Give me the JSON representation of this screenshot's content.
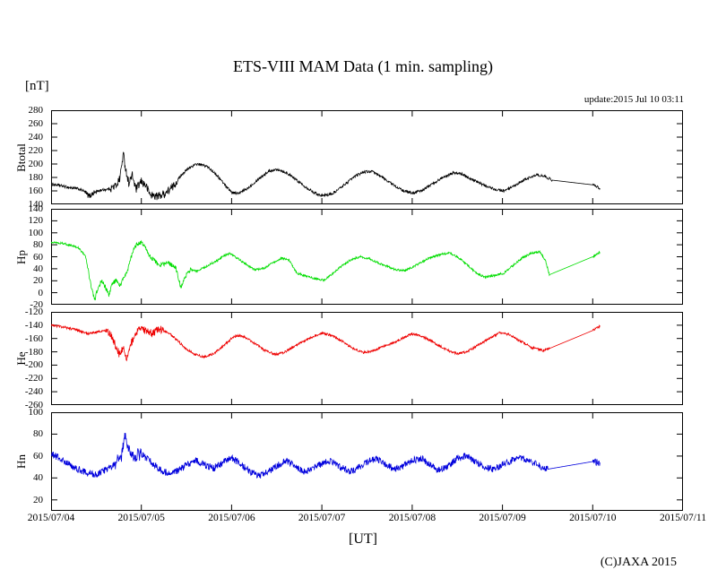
{
  "chart": {
    "title": "ETS-VIII MAM Data (1 min. sampling)",
    "unit_label": "[nT]",
    "update_text": "update:2015 Jul 10 03:11",
    "x_axis_label": "[UT]",
    "copyright": "(C)JAXA 2015"
  },
  "chart_data": {
    "type": "line",
    "title": "ETS-VIII MAM Data (1 min. sampling)",
    "xlabel": "[UT]",
    "ylabel": "[nT]",
    "x_range_days": [
      0,
      7
    ],
    "x_ticks": [
      "2015/07/04",
      "2015/07/05",
      "2015/07/06",
      "2015/07/07",
      "2015/07/08",
      "2015/07/09",
      "2015/07/10",
      "2015/07/11"
    ],
    "panels": [
      {
        "label": "Btotal",
        "color": "#000000",
        "ylim": [
          140,
          280
        ],
        "yticks": [
          140,
          160,
          180,
          200,
          220,
          240,
          260,
          280
        ],
        "series": {
          "noise": 2.0,
          "bursts": [
            [
              0.66,
              1.4,
              3.0
            ],
            [
              0.38,
              0.52,
              2.0
            ]
          ],
          "gap": [
            5.55,
            6.0
          ],
          "points": [
            [
              0,
              170
            ],
            [
              0.1,
              168
            ],
            [
              0.2,
              165
            ],
            [
              0.3,
              163
            ],
            [
              0.36,
              160
            ],
            [
              0.42,
              152
            ],
            [
              0.47,
              157
            ],
            [
              0.55,
              161
            ],
            [
              0.65,
              163
            ],
            [
              0.72,
              168
            ],
            [
              0.76,
              178
            ],
            [
              0.8,
              215
            ],
            [
              0.83,
              190
            ],
            [
              0.86,
              172
            ],
            [
              0.9,
              183
            ],
            [
              0.94,
              162
            ],
            [
              1,
              174
            ],
            [
              1.05,
              168
            ],
            [
              1.1,
              154
            ],
            [
              1.18,
              152
            ],
            [
              1.26,
              156
            ],
            [
              1.35,
              166
            ],
            [
              1.45,
              185
            ],
            [
              1.55,
              196
            ],
            [
              1.62,
              200
            ],
            [
              1.72,
              197
            ],
            [
              1.82,
              186
            ],
            [
              1.92,
              170
            ],
            [
              2,
              158
            ],
            [
              2.08,
              156
            ],
            [
              2.18,
              164
            ],
            [
              2.3,
              178
            ],
            [
              2.42,
              190
            ],
            [
              2.52,
              192
            ],
            [
              2.62,
              186
            ],
            [
              2.72,
              176
            ],
            [
              2.85,
              163
            ],
            [
              2.95,
              155
            ],
            [
              3.02,
              153
            ],
            [
              3.12,
              156
            ],
            [
              3.22,
              166
            ],
            [
              3.35,
              180
            ],
            [
              3.45,
              188
            ],
            [
              3.55,
              189
            ],
            [
              3.65,
              182
            ],
            [
              3.78,
              170
            ],
            [
              3.9,
              160
            ],
            [
              4,
              157
            ],
            [
              4.1,
              160
            ],
            [
              4.22,
              170
            ],
            [
              4.35,
              181
            ],
            [
              4.45,
              187
            ],
            [
              4.55,
              185
            ],
            [
              4.65,
              178
            ],
            [
              4.8,
              168
            ],
            [
              4.92,
              162
            ],
            [
              5.02,
              160
            ],
            [
              5.12,
              166
            ],
            [
              5.25,
              177
            ],
            [
              5.38,
              184
            ],
            [
              5.48,
              181
            ],
            [
              5.55,
              176
            ],
            [
              6,
              169
            ],
            [
              6.08,
              164
            ]
          ]
        }
      },
      {
        "label": "Hp",
        "color": "#00dd00",
        "ylim": [
          -20,
          140
        ],
        "yticks": [
          -20,
          0,
          20,
          40,
          60,
          80,
          100,
          120,
          140
        ],
        "series": {
          "noise": 1.8,
          "bursts": [
            [
              0.4,
              0.78,
              2.2
            ],
            [
              0.85,
              1.55,
              2.0
            ]
          ],
          "gap": [
            5.52,
            6.0
          ],
          "points": [
            [
              0,
              85
            ],
            [
              0.15,
              82
            ],
            [
              0.3,
              75
            ],
            [
              0.38,
              62
            ],
            [
              0.44,
              15
            ],
            [
              0.48,
              -13
            ],
            [
              0.52,
              8
            ],
            [
              0.56,
              20
            ],
            [
              0.6,
              10
            ],
            [
              0.64,
              -3
            ],
            [
              0.68,
              14
            ],
            [
              0.72,
              22
            ],
            [
              0.76,
              12
            ],
            [
              0.8,
              24
            ],
            [
              0.84,
              34
            ],
            [
              0.88,
              55
            ],
            [
              0.92,
              74
            ],
            [
              0.96,
              82
            ],
            [
              1,
              84
            ],
            [
              1.04,
              77
            ],
            [
              1.08,
              64
            ],
            [
              1.14,
              54
            ],
            [
              1.2,
              46
            ],
            [
              1.3,
              50
            ],
            [
              1.38,
              42
            ],
            [
              1.44,
              8
            ],
            [
              1.48,
              26
            ],
            [
              1.54,
              38
            ],
            [
              1.62,
              36
            ],
            [
              1.72,
              44
            ],
            [
              1.82,
              52
            ],
            [
              1.9,
              60
            ],
            [
              1.98,
              66
            ],
            [
              2.06,
              58
            ],
            [
              2.16,
              47
            ],
            [
              2.26,
              38
            ],
            [
              2.36,
              41
            ],
            [
              2.46,
              50
            ],
            [
              2.56,
              58
            ],
            [
              2.64,
              54
            ],
            [
              2.72,
              33
            ],
            [
              2.82,
              28
            ],
            [
              2.92,
              24
            ],
            [
              3.02,
              21
            ],
            [
              3.12,
              32
            ],
            [
              3.22,
              45
            ],
            [
              3.32,
              55
            ],
            [
              3.42,
              60
            ],
            [
              3.52,
              57
            ],
            [
              3.62,
              50
            ],
            [
              3.72,
              44
            ],
            [
              3.82,
              38
            ],
            [
              3.92,
              37
            ],
            [
              4.02,
              44
            ],
            [
              4.12,
              52
            ],
            [
              4.22,
              60
            ],
            [
              4.32,
              64
            ],
            [
              4.42,
              66
            ],
            [
              4.52,
              58
            ],
            [
              4.62,
              45
            ],
            [
              4.72,
              31
            ],
            [
              4.82,
              26
            ],
            [
              4.92,
              29
            ],
            [
              5.02,
              33
            ],
            [
              5.12,
              46
            ],
            [
              5.22,
              58
            ],
            [
              5.32,
              66
            ],
            [
              5.42,
              68
            ],
            [
              5.48,
              52
            ],
            [
              5.52,
              30
            ],
            [
              6,
              60
            ],
            [
              6.08,
              68
            ]
          ]
        }
      },
      {
        "label": "He",
        "color": "#ee0000",
        "ylim": [
          -260,
          -120
        ],
        "yticks": [
          -260,
          -240,
          -220,
          -200,
          -180,
          -160,
          -140,
          -120
        ],
        "series": {
          "noise": 1.8,
          "bursts": [
            [
              0.6,
              1.25,
              3.5
            ]
          ],
          "gap": [
            5.52,
            6.0
          ],
          "points": [
            [
              0,
              -140
            ],
            [
              0.15,
              -143
            ],
            [
              0.3,
              -148
            ],
            [
              0.4,
              -153
            ],
            [
              0.48,
              -151
            ],
            [
              0.58,
              -148
            ],
            [
              0.66,
              -153
            ],
            [
              0.72,
              -172
            ],
            [
              0.76,
              -185
            ],
            [
              0.8,
              -172
            ],
            [
              0.84,
              -190
            ],
            [
              0.88,
              -170
            ],
            [
              0.93,
              -152
            ],
            [
              1,
              -146
            ],
            [
              1.06,
              -149
            ],
            [
              1.12,
              -152
            ],
            [
              1.2,
              -146
            ],
            [
              1.3,
              -151
            ],
            [
              1.4,
              -163
            ],
            [
              1.5,
              -176
            ],
            [
              1.6,
              -184
            ],
            [
              1.7,
              -188
            ],
            [
              1.8,
              -183
            ],
            [
              1.9,
              -172
            ],
            [
              2,
              -160
            ],
            [
              2.06,
              -155
            ],
            [
              2.14,
              -158
            ],
            [
              2.24,
              -166
            ],
            [
              2.36,
              -177
            ],
            [
              2.48,
              -184
            ],
            [
              2.58,
              -181
            ],
            [
              2.68,
              -173
            ],
            [
              2.8,
              -164
            ],
            [
              2.9,
              -157
            ],
            [
              3,
              -152
            ],
            [
              3.1,
              -155
            ],
            [
              3.2,
              -162
            ],
            [
              3.33,
              -174
            ],
            [
              3.46,
              -181
            ],
            [
              3.56,
              -179
            ],
            [
              3.66,
              -173
            ],
            [
              3.78,
              -167
            ],
            [
              3.9,
              -159
            ],
            [
              4,
              -153
            ],
            [
              4.1,
              -156
            ],
            [
              4.24,
              -166
            ],
            [
              4.38,
              -177
            ],
            [
              4.5,
              -183
            ],
            [
              4.6,
              -180
            ],
            [
              4.72,
              -171
            ],
            [
              4.85,
              -160
            ],
            [
              4.98,
              -151
            ],
            [
              5.08,
              -154
            ],
            [
              5.2,
              -164
            ],
            [
              5.33,
              -174
            ],
            [
              5.45,
              -178
            ],
            [
              5.52,
              -175
            ],
            [
              6,
              -148
            ],
            [
              6.08,
              -142
            ]
          ]
        }
      },
      {
        "label": "Hn",
        "color": "#0000dd",
        "ylim": [
          10,
          100
        ],
        "yticks": [
          20,
          40,
          60,
          80,
          100
        ],
        "series": {
          "noise": 3.2,
          "bursts": [
            [
              0.7,
              1.0,
              1.8
            ]
          ],
          "gap": [
            5.5,
            6.0
          ],
          "points": [
            [
              0,
              62
            ],
            [
              0.12,
              57
            ],
            [
              0.25,
              50
            ],
            [
              0.38,
              45
            ],
            [
              0.5,
              43
            ],
            [
              0.6,
              47
            ],
            [
              0.7,
              52
            ],
            [
              0.78,
              60
            ],
            [
              0.82,
              78
            ],
            [
              0.86,
              66
            ],
            [
              0.92,
              60
            ],
            [
              1,
              62
            ],
            [
              1.1,
              55
            ],
            [
              1.2,
              48
            ],
            [
              1.3,
              44
            ],
            [
              1.4,
              46
            ],
            [
              1.5,
              52
            ],
            [
              1.6,
              56
            ],
            [
              1.7,
              52
            ],
            [
              1.8,
              49
            ],
            [
              1.9,
              54
            ],
            [
              2,
              58
            ],
            [
              2.1,
              53
            ],
            [
              2.2,
              46
            ],
            [
              2.3,
              42
            ],
            [
              2.4,
              45
            ],
            [
              2.5,
              51
            ],
            [
              2.6,
              56
            ],
            [
              2.7,
              51
            ],
            [
              2.8,
              46
            ],
            [
              2.9,
              48
            ],
            [
              3,
              53
            ],
            [
              3.1,
              56
            ],
            [
              3.2,
              50
            ],
            [
              3.3,
              46
            ],
            [
              3.4,
              49
            ],
            [
              3.5,
              55
            ],
            [
              3.6,
              58
            ],
            [
              3.7,
              53
            ],
            [
              3.8,
              48
            ],
            [
              3.9,
              51
            ],
            [
              4,
              56
            ],
            [
              4.1,
              58
            ],
            [
              4.2,
              52
            ],
            [
              4.3,
              47
            ],
            [
              4.4,
              51
            ],
            [
              4.5,
              58
            ],
            [
              4.6,
              60
            ],
            [
              4.7,
              55
            ],
            [
              4.8,
              50
            ],
            [
              4.9,
              48
            ],
            [
              5,
              52
            ],
            [
              5.1,
              56
            ],
            [
              5.2,
              58
            ],
            [
              5.3,
              56
            ],
            [
              5.4,
              51
            ],
            [
              5.5,
              48
            ],
            [
              6,
              55
            ],
            [
              6.08,
              53
            ]
          ]
        }
      }
    ]
  }
}
